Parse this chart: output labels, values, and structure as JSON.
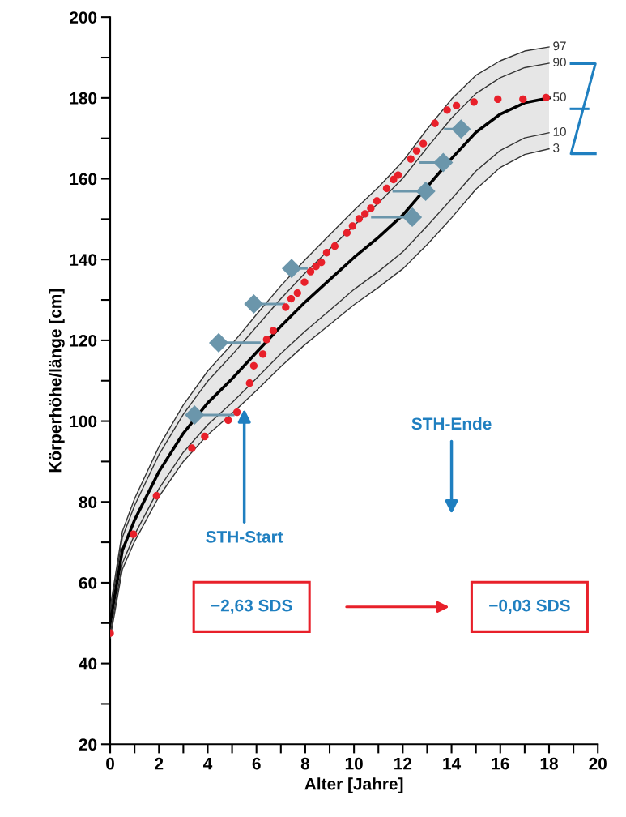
{
  "chart_data": {
    "type": "line",
    "xlabel": "Alter [Jahre]",
    "ylabel": "Körperhöhe/länge [cm]",
    "xlim": [
      0,
      20
    ],
    "ylim": [
      20,
      200
    ],
    "xticks": [
      0,
      {
        "value": 1,
        "label": null
      },
      2,
      {
        "value": 3,
        "label": null
      },
      4,
      {
        "value": 5,
        "label": null
      },
      6,
      {
        "value": 7,
        "label": null
      },
      8,
      {
        "value": 9,
        "label": null
      },
      10,
      {
        "value": 11,
        "label": null
      },
      12,
      {
        "value": 13,
        "label": null
      },
      14,
      {
        "value": 15,
        "label": null
      },
      16,
      {
        "value": 17,
        "label": null
      },
      18,
      {
        "value": 19,
        "label": null
      },
      20
    ],
    "yticks": [
      20,
      {
        "value": 30,
        "label": null
      },
      40,
      {
        "value": 50,
        "label": null
      },
      60,
      {
        "value": 70,
        "label": null
      },
      80,
      {
        "value": 90,
        "label": null
      },
      100,
      {
        "value": 110,
        "label": null
      },
      120,
      {
        "value": 130,
        "label": null
      },
      140,
      {
        "value": 150,
        "label": null
      },
      160,
      {
        "value": 170,
        "label": null
      },
      180,
      {
        "value": 190,
        "label": null
      },
      200
    ],
    "grid": false,
    "legend": false,
    "series": [
      {
        "name": "97",
        "color": "#333333",
        "x": [
          0,
          0.5,
          1,
          2,
          3,
          4,
          5,
          6,
          7,
          8,
          9,
          10,
          11,
          12,
          13,
          14,
          15,
          16,
          17,
          18
        ],
        "values": [
          53.8,
          72.7,
          80.8,
          93.7,
          104.0,
          112.4,
          119.1,
          126.4,
          133.5,
          140.0,
          146.1,
          152.2,
          157.9,
          164.3,
          172.3,
          179.7,
          185.6,
          189.2,
          191.6,
          192.6
        ]
      },
      {
        "name": "90",
        "color": "#333333",
        "x": [
          0,
          0.5,
          1,
          2,
          3,
          4,
          5,
          6,
          7,
          8,
          9,
          10,
          11,
          12,
          13,
          14,
          15,
          16,
          17,
          18
        ],
        "values": [
          52.6,
          71.2,
          79.1,
          91.7,
          101.7,
          109.9,
          116.4,
          123.4,
          130.3,
          136.7,
          142.6,
          148.4,
          154.0,
          160.1,
          167.7,
          175.0,
          181.1,
          185.0,
          187.5,
          188.6
        ]
      },
      {
        "name": "50",
        "color": "#000000",
        "x": [
          0,
          0.5,
          1,
          2,
          3,
          4,
          5,
          6,
          7,
          8,
          9,
          10,
          11,
          12,
          13,
          14,
          15,
          16,
          17,
          18
        ],
        "values": [
          50,
          68,
          75.5,
          87.5,
          97,
          104.5,
          110.5,
          117,
          123.5,
          129.5,
          135,
          140.5,
          145.5,
          151,
          158,
          165,
          171.5,
          176,
          178.8,
          180
        ],
        "lower": [
          46.2,
          63.3,
          70.2,
          81.3,
          90.0,
          96.6,
          101.9,
          107.6,
          113.5,
          119.0,
          123.9,
          128.8,
          133.1,
          137.7,
          143.7,
          150.3,
          157.4,
          162.8,
          166.0,
          167.4
        ],
        "upper": [
          53.8,
          72.7,
          80.8,
          93.7,
          104.0,
          112.4,
          119.1,
          126.4,
          133.5,
          140.0,
          146.1,
          152.2,
          157.9,
          164.3,
          172.3,
          179.7,
          185.6,
          189.2,
          191.6,
          192.6
        ]
      },
      {
        "name": "10",
        "color": "#333333",
        "x": [
          0,
          0.5,
          1,
          2,
          3,
          4,
          5,
          6,
          7,
          8,
          9,
          10,
          11,
          12,
          13,
          14,
          15,
          16,
          17,
          18
        ],
        "values": [
          47.4,
          64.8,
          71.9,
          83.3,
          92.3,
          99.1,
          104.6,
          110.6,
          116.7,
          122.3,
          127.4,
          132.6,
          137.0,
          141.9,
          148.3,
          155.0,
          161.9,
          167.0,
          170.1,
          171.4
        ]
      },
      {
        "name": "3",
        "color": "#333333",
        "x": [
          0,
          0.5,
          1,
          2,
          3,
          4,
          5,
          6,
          7,
          8,
          9,
          10,
          11,
          12,
          13,
          14,
          15,
          16,
          17,
          18
        ],
        "values": [
          46.2,
          63.3,
          70.2,
          81.3,
          90.0,
          96.6,
          101.9,
          107.6,
          113.5,
          119.0,
          123.9,
          128.8,
          133.1,
          137.7,
          143.7,
          150.3,
          157.4,
          162.8,
          166.0,
          167.4
        ]
      },
      {
        "type": "scatter",
        "marker": "diamond",
        "color": "#6b96ab",
        "x": [
          3.46,
          4.45,
          5.89,
          7.44,
          12.39,
          12.94,
          13.66,
          14.39
        ],
        "values": [
          101.5,
          119.4,
          129.0,
          137.8,
          150.5,
          156.9,
          164.0,
          172.3
        ],
        "xerrors": [
          [
            3.46,
            5.1
          ],
          [
            4.45,
            6.17
          ],
          [
            5.89,
            7.17
          ],
          [
            7.44,
            8.1
          ],
          [
            10.7,
            12.39
          ],
          [
            11.58,
            12.94
          ],
          [
            12.67,
            13.66
          ],
          [
            13.69,
            14.39
          ]
        ]
      },
      {
        "type": "scatter",
        "marker": "circle",
        "color": "#e8202a",
        "x": [
          0,
          0.95,
          1.9,
          3.35,
          3.88,
          4.84,
          5.2,
          5.72,
          5.89,
          6.26,
          6.42,
          6.69,
          7.2,
          7.42,
          7.68,
          7.97,
          8.22,
          8.44,
          8.66,
          8.88,
          9.21,
          9.71,
          9.94,
          10.21,
          10.45,
          10.69,
          10.94,
          11.34,
          11.62,
          11.81,
          12.33,
          12.57,
          12.84,
          13.32,
          13.82,
          14.2,
          14.92,
          15.9,
          16.93,
          17.88
        ],
        "values": [
          47.5,
          72,
          81.5,
          93.3,
          96.2,
          100.2,
          102.2,
          109.4,
          113.7,
          116.6,
          120.2,
          122.4,
          128.2,
          130.3,
          131.7,
          134.4,
          137.0,
          138.3,
          139.3,
          141.7,
          143.3,
          146.6,
          148.3,
          150.1,
          151.3,
          152.7,
          154.5,
          157.6,
          159.8,
          160.9,
          164.9,
          166.9,
          168.7,
          173.7,
          177.0,
          178.1,
          179.0,
          179.7,
          179.7,
          180.1
        ]
      }
    ],
    "annotations": [
      "STH-Start",
      "STH-Ende",
      "−2,63 SDS",
      "−0,03 SDS"
    ]
  }
}
